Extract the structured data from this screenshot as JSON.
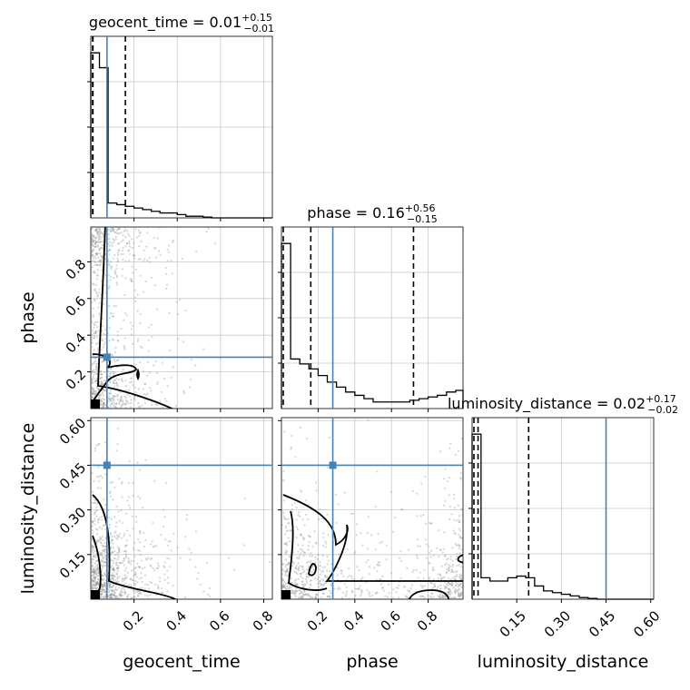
{
  "chart_data": {
    "type": "corner",
    "truth_color": "#4682b4",
    "parameters": [
      {
        "name": "geocent_time",
        "label": "geocent_time",
        "range": [
          0,
          0.84
        ],
        "ticks": [
          0.2,
          0.4,
          0.6,
          0.8
        ],
        "tick_labels": [
          "0.2",
          "0.4",
          "0.6",
          "0.8"
        ],
        "truth": 0.075,
        "quantiles": [
          0.0,
          0.01,
          0.16
        ],
        "title": {
          "main": "geocent_time = 0.01",
          "sup": "+0.15",
          "sub": "−0.01"
        },
        "hist_edges": [
          0,
          0.04,
          0.08,
          0.12,
          0.16,
          0.2,
          0.24,
          0.28,
          0.32,
          0.36,
          0.4,
          0.44,
          0.48,
          0.52,
          0.56,
          0.6,
          0.64,
          0.68,
          0.72,
          0.76,
          0.8,
          0.84
        ],
        "hist_counts": [
          100,
          91,
          9,
          8,
          7,
          6,
          5,
          4,
          3,
          3,
          2,
          1,
          1,
          0.5,
          0,
          0,
          0,
          0,
          0,
          0,
          0
        ]
      },
      {
        "name": "phase",
        "label": "phase",
        "range": [
          0,
          0.99
        ],
        "ticks": [
          0.2,
          0.4,
          0.6,
          0.8
        ],
        "tick_labels": [
          "0.2",
          "0.4",
          "0.6",
          "0.8"
        ],
        "truth": 0.28,
        "quantiles": [
          0.0,
          0.16,
          0.72
        ],
        "title": {
          "main": "phase = 0.16",
          "sup": "+0.56",
          "sub": "−0.15"
        },
        "hist_edges": [
          0,
          0.05,
          0.1,
          0.15,
          0.2,
          0.25,
          0.3,
          0.35,
          0.4,
          0.45,
          0.5,
          0.55,
          0.6,
          0.65,
          0.7,
          0.75,
          0.8,
          0.85,
          0.9,
          0.95,
          0.99
        ],
        "hist_counts": [
          100,
          30,
          27,
          24,
          20,
          16,
          13,
          10,
          8,
          6,
          4,
          4,
          4,
          4,
          5,
          6,
          7,
          8,
          10,
          11
        ]
      },
      {
        "name": "luminosity_distance",
        "label": "luminosity_distance",
        "range": [
          0,
          0.61
        ],
        "ticks": [
          0.15,
          0.3,
          0.45,
          0.6
        ],
        "tick_labels": [
          "0.15",
          "0.30",
          "0.45",
          "0.60"
        ],
        "truth": 0.45,
        "quantiles": [
          0.0,
          0.02,
          0.19
        ],
        "title": {
          "main": "luminosity_distance = 0.02",
          "sup": "+0.17",
          "sub": "−0.02"
        },
        "hist_edges": [
          0,
          0.03,
          0.06,
          0.09,
          0.12,
          0.15,
          0.18,
          0.21,
          0.24,
          0.27,
          0.3,
          0.33,
          0.36,
          0.39,
          0.42,
          0.45,
          0.48,
          0.51,
          0.54,
          0.57,
          0.61
        ],
        "hist_counts": [
          100,
          13,
          11,
          11,
          13,
          14,
          13,
          8,
          5,
          4,
          3,
          2,
          1,
          0.5,
          0,
          0,
          0,
          0,
          0,
          0
        ]
      }
    ],
    "y_ticks": {
      "phase": {
        "ticks": [
          0.2,
          0.4,
          0.6,
          0.8
        ],
        "tick_labels": [
          "0.2",
          "0.4",
          "0.6",
          "0.8"
        ]
      },
      "luminosity_distance": {
        "ticks": [
          0.15,
          0.3,
          0.45,
          0.6
        ],
        "tick_labels": [
          "0.15",
          "0.30",
          "0.45",
          "0.60"
        ]
      }
    },
    "grid": true
  }
}
